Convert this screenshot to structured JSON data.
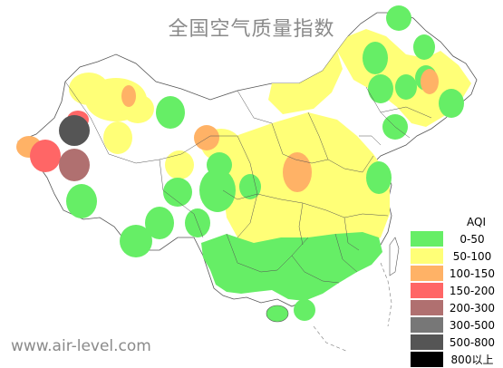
{
  "title": "全国空气质量指数",
  "watermark": "www.air-level.com",
  "legend": {
    "title": "AQI",
    "items": [
      {
        "label": "0-50",
        "color": "#66ee66"
      },
      {
        "label": "50-100",
        "color": "#ffff77"
      },
      {
        "label": "100-150",
        "color": "#ffb266"
      },
      {
        "label": "150-200",
        "color": "#ff6666"
      },
      {
        "label": "200-300",
        "color": "#b07070"
      },
      {
        "label": "300-500",
        "color": "#777777"
      },
      {
        "label": "500-800",
        "color": "#555555"
      },
      {
        "label": "800以上",
        "color": "#000000"
      }
    ]
  }
}
